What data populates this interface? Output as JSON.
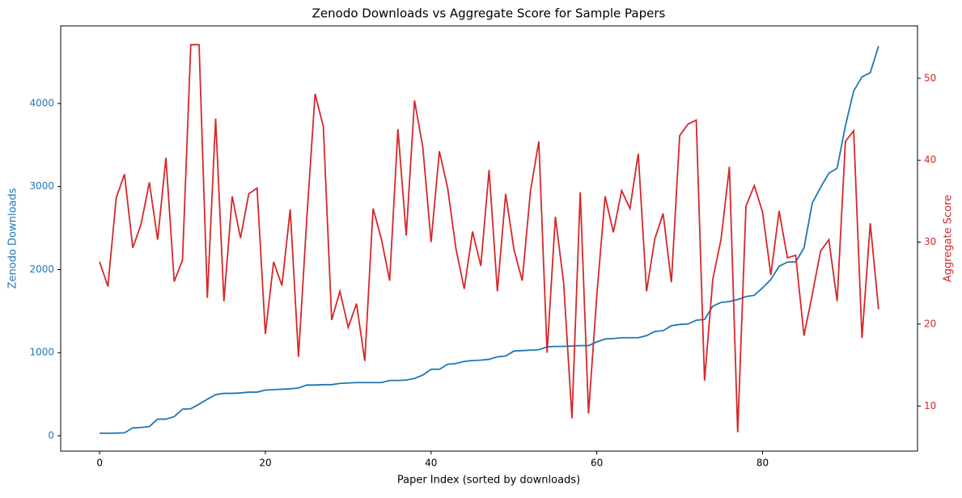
{
  "chart_data": {
    "type": "line",
    "title": "Zenodo Downloads vs Aggregate Score for Sample Papers",
    "x_label": "Paper Index (sorted by downloads)",
    "y_label": "Zenodo Downloads",
    "y2_label": "Aggregate Score",
    "x": [
      0,
      1,
      2,
      3,
      4,
      5,
      6,
      7,
      8,
      9,
      10,
      11,
      12,
      13,
      14,
      15,
      16,
      17,
      18,
      19,
      20,
      21,
      22,
      23,
      24,
      25,
      26,
      27,
      28,
      29,
      30,
      31,
      32,
      33,
      34,
      35,
      36,
      37,
      38,
      39,
      40,
      41,
      42,
      43,
      44,
      45,
      46,
      47,
      48,
      49,
      50,
      51,
      52,
      53,
      54,
      55,
      56,
      57,
      58,
      59,
      60,
      61,
      62,
      63,
      64,
      65,
      66,
      67,
      68,
      69,
      70,
      71,
      72,
      73,
      74,
      75,
      76,
      77,
      78,
      79,
      80,
      81,
      82,
      83,
      84,
      85,
      86,
      87,
      88,
      89,
      90,
      91,
      92,
      93,
      94
    ],
    "series": [
      {
        "name": "Zenodo Downloads",
        "color": "#1f77b4",
        "axis": "y",
        "values": [
          30,
          30,
          32,
          35,
          95,
          100,
          110,
          200,
          200,
          230,
          320,
          325,
          380,
          440,
          495,
          510,
          510,
          515,
          525,
          525,
          550,
          555,
          560,
          565,
          575,
          610,
          610,
          615,
          615,
          630,
          635,
          640,
          640,
          640,
          640,
          665,
          665,
          670,
          690,
          730,
          800,
          800,
          860,
          870,
          895,
          905,
          910,
          920,
          950,
          960,
          1020,
          1025,
          1030,
          1035,
          1070,
          1075,
          1075,
          1080,
          1085,
          1085,
          1130,
          1165,
          1170,
          1180,
          1180,
          1180,
          1205,
          1255,
          1265,
          1325,
          1340,
          1345,
          1390,
          1400,
          1560,
          1605,
          1615,
          1640,
          1675,
          1690,
          1780,
          1880,
          2040,
          2090,
          2095,
          2260,
          2800,
          2990,
          3160,
          3220,
          3730,
          4150,
          4320,
          4370,
          4690
        ]
      },
      {
        "name": "Aggregate Score",
        "color": "#d62728",
        "axis": "y2",
        "values": [
          27.6,
          24.6,
          35.4,
          38.3,
          29.3,
          32.2,
          37.3,
          30.3,
          40.3,
          25.2,
          27.8,
          54.1,
          54.1,
          23.2,
          45.1,
          22.8,
          35.6,
          30.5,
          35.9,
          36.6,
          18.8,
          27.6,
          24.7,
          34.0,
          16.0,
          32.9,
          48.1,
          44.1,
          20.5,
          24.0,
          19.6,
          22.5,
          15.5,
          34.1,
          30.4,
          25.3,
          43.8,
          30.8,
          47.3,
          41.6,
          30.0,
          41.1,
          36.6,
          29.2,
          24.3,
          31.3,
          27.1,
          38.8,
          24.0,
          35.9,
          29.1,
          25.3,
          36.3,
          42.3,
          16.5,
          33.1,
          25.0,
          8.5,
          36.1,
          9.1,
          23.5,
          35.6,
          31.2,
          36.3,
          34.1,
          40.8,
          24.0,
          30.4,
          33.5,
          25.1,
          43.0,
          44.4,
          44.9,
          13.1,
          25.5,
          30.4,
          39.2,
          6.8,
          34.4,
          36.9,
          33.7,
          26.0,
          33.8,
          28.1,
          28.4,
          18.6,
          23.6,
          28.9,
          30.3,
          22.8,
          42.3,
          43.6,
          18.3,
          32.3,
          21.8
        ]
      }
    ],
    "xlim": [
      -4.7,
      98.7
    ],
    "xticks": [
      0,
      20,
      40,
      60,
      80
    ],
    "ylim": [
      -185,
      4934
    ],
    "yticks": [
      0,
      1000,
      2000,
      3000,
      4000
    ],
    "y2lim": [
      4.5,
      56.4
    ],
    "y2ticks": [
      10,
      20,
      30,
      40,
      50
    ],
    "grid": false
  }
}
